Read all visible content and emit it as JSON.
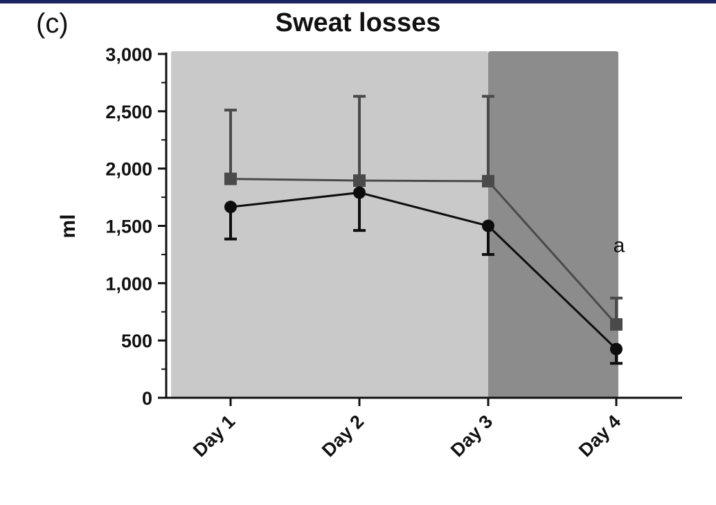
{
  "panel_label": "(c)",
  "chart_data": {
    "type": "line",
    "title": "Sweat losses",
    "xlabel": "",
    "ylabel": "ml",
    "categories": [
      "Day 1",
      "Day 2",
      "Day 3",
      "Day 4"
    ],
    "ylim": [
      0,
      3000
    ],
    "yticks": [
      0,
      500,
      1000,
      1500,
      2000,
      2500,
      3000
    ],
    "ytick_labels": [
      "0",
      "500",
      "1,000",
      "1,500",
      "2,000",
      "2,500",
      "3,000"
    ],
    "shaded_regions": [
      {
        "from": "Day 1",
        "to": "Day 3",
        "shade": "light",
        "color": "#c9c9c9"
      },
      {
        "from": "Day 3",
        "to": "Day 4",
        "shade": "dark",
        "color": "#8c8c8c"
      }
    ],
    "series": [
      {
        "name": "square-series",
        "marker": "square",
        "color": "#4a4a4a",
        "values": [
          1910,
          1895,
          1890,
          640
        ],
        "error_upper": [
          2510,
          2630,
          2630,
          870
        ],
        "error_lower": [
          null,
          null,
          null,
          null
        ]
      },
      {
        "name": "circle-series",
        "marker": "circle",
        "color": "#0d0d0d",
        "values": [
          1665,
          1790,
          1500,
          425
        ],
        "error_upper": [
          null,
          null,
          null,
          null
        ],
        "error_lower": [
          1385,
          1460,
          1250,
          300
        ]
      }
    ],
    "annotations": [
      {
        "text": "a",
        "category": "Day 4",
        "y": 1330
      }
    ]
  }
}
